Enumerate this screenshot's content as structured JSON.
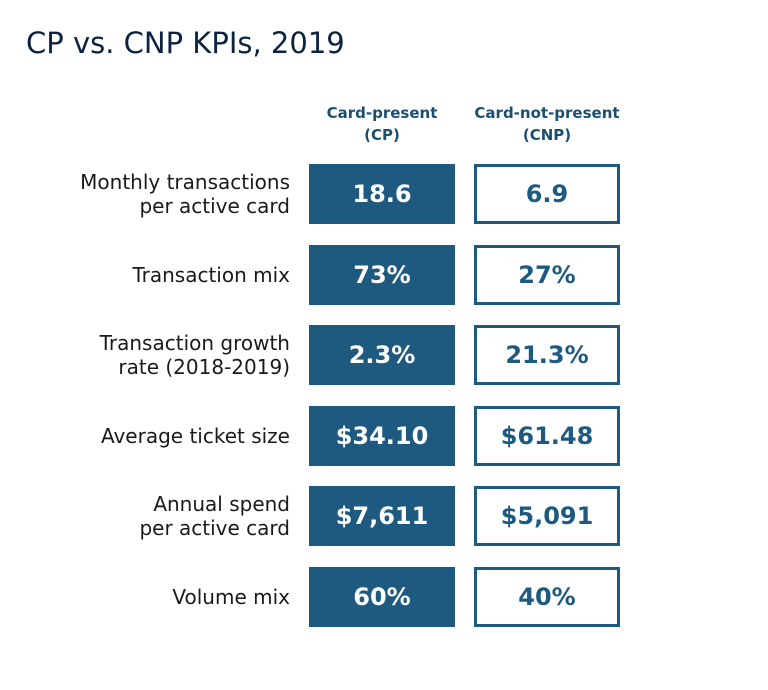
{
  "chart_data": {
    "type": "table",
    "title": "CP vs. CNP KPIs, 2019",
    "columns": [
      {
        "name": "Card-present (CP)",
        "header_lines": [
          "Card-present",
          "(CP)"
        ]
      },
      {
        "name": "Card-not-present (CNP)",
        "header_lines": [
          "Card-not-present",
          "(CNP)"
        ]
      }
    ],
    "rows": [
      {
        "label": "Monthly transactions per active card",
        "label_lines": [
          "Monthly transactions",
          "per active card"
        ],
        "cp": "18.6",
        "cnp": "6.9"
      },
      {
        "label": "Transaction mix",
        "label_lines": [
          "Transaction mix"
        ],
        "cp": "73%",
        "cnp": "27%"
      },
      {
        "label": "Transaction growth rate (2018-2019)",
        "label_lines": [
          "Transaction growth",
          "rate (2018-2019)"
        ],
        "cp": "2.3%",
        "cnp": "21.3%"
      },
      {
        "label": "Average ticket size",
        "label_lines": [
          "Average ticket size"
        ],
        "cp": "$34.10",
        "cnp": "$61.48"
      },
      {
        "label": "Annual spend per active card",
        "label_lines": [
          "Annual spend",
          "per active card"
        ],
        "cp": "$7,611",
        "cnp": "$5,091"
      },
      {
        "label": "Volume mix",
        "label_lines": [
          "Volume mix"
        ],
        "cp": "60%",
        "cnp": "40%"
      }
    ],
    "colors": {
      "filled_cell": "#1e5a80",
      "outline_cell": "#1e5a80",
      "header_text": "#1b4f72",
      "title_text": "#0c2340"
    }
  }
}
